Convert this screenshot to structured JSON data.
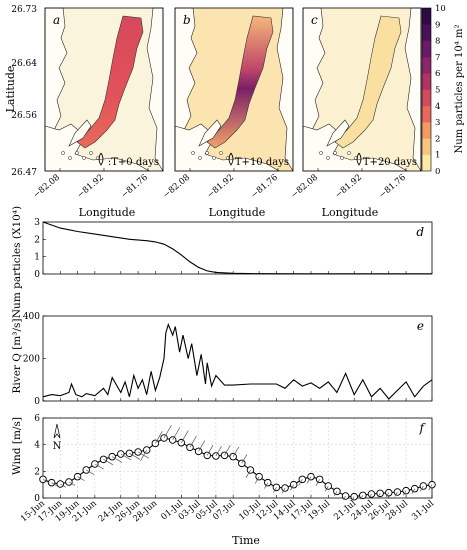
{
  "maps": {
    "ylabel": "Latitude",
    "xlabel": "Longitude",
    "yticks": [
      "26.73",
      "26.64",
      "26.56",
      "26.47"
    ],
    "xticks": [
      "−82.08",
      "−81.92",
      "−81.76"
    ],
    "panels": [
      {
        "letter": "a",
        "label": ":T+0 days"
      },
      {
        "letter": "b",
        "label": "T+10 days"
      },
      {
        "letter": "c",
        "label": "T+20 days"
      }
    ],
    "colorbar": {
      "label": "Num particles per 10⁴ m²",
      "ticks": [
        "10",
        "9",
        "8",
        "7",
        "6",
        "5",
        "4",
        "3",
        "2",
        "1",
        "0"
      ],
      "colors": [
        "#fbe9a6",
        "#f7c77f",
        "#f29a63",
        "#e8685a",
        "#d24a5e",
        "#b03565",
        "#8d2569",
        "#6c1a66",
        "#4a105a",
        "#2d0a44"
      ]
    }
  },
  "chart_data": [
    {
      "type": "line",
      "panel": "d",
      "ylabel": "Num particles (X10⁴)",
      "ylim": [
        0,
        3
      ],
      "yticks": [
        "3",
        "2",
        "1",
        "0"
      ],
      "x": [
        0,
        2,
        4,
        6,
        8,
        10,
        12,
        13,
        14,
        15,
        16,
        17,
        18,
        19,
        20,
        22,
        25,
        30,
        45
      ],
      "y": [
        3.0,
        2.65,
        2.45,
        2.3,
        2.15,
        2.0,
        1.92,
        1.85,
        1.72,
        1.45,
        1.1,
        0.7,
        0.38,
        0.18,
        0.09,
        0.04,
        0.02,
        0.01,
        0.01
      ]
    },
    {
      "type": "line",
      "panel": "e",
      "ylabel": "River Q [m³/s]",
      "ylim": [
        0,
        400
      ],
      "yticks": [
        "400",
        "200",
        "0"
      ],
      "x": [
        0,
        1,
        2,
        3,
        3.3,
        3.8,
        4.5,
        5,
        6,
        7,
        7.5,
        8,
        9,
        9.5,
        10,
        10.5,
        11,
        11.5,
        12,
        12.5,
        13,
        13.5,
        14,
        14.2,
        14.5,
        15,
        15.3,
        15.8,
        16.2,
        16.8,
        17.2,
        17.8,
        18.3,
        18.8,
        19,
        19.5,
        20,
        21,
        22,
        24,
        27,
        28,
        29,
        30,
        31,
        32,
        33,
        34,
        35,
        36,
        37,
        38,
        39,
        40,
        41,
        42,
        43,
        44,
        45
      ],
      "y": [
        20,
        30,
        25,
        40,
        80,
        30,
        20,
        35,
        25,
        60,
        30,
        110,
        40,
        90,
        20,
        120,
        60,
        100,
        30,
        140,
        50,
        110,
        200,
        320,
        360,
        310,
        350,
        230,
        310,
        200,
        270,
        120,
        220,
        80,
        180,
        70,
        120,
        75,
        75,
        80,
        80,
        60,
        100,
        70,
        85,
        60,
        90,
        40,
        130,
        30,
        100,
        20,
        60,
        10,
        50,
        90,
        20,
        70,
        100
      ]
    },
    {
      "type": "line",
      "panel": "f",
      "ylabel": "Wind [m/s]",
      "xlabel": "Time",
      "ylim": [
        0,
        6
      ],
      "yticks": [
        "6",
        "4",
        "2",
        "0"
      ],
      "x": [
        0,
        1,
        2,
        3,
        4,
        5,
        6,
        7,
        8,
        9,
        10,
        11,
        12,
        13,
        14,
        15,
        16,
        17,
        18,
        19,
        20,
        21,
        22,
        23,
        24,
        25,
        26,
        27,
        28,
        29,
        30,
        31,
        32,
        33,
        34,
        35,
        36,
        37,
        38,
        39,
        40,
        41,
        42,
        43,
        44,
        45
      ],
      "y": [
        1.4,
        1.15,
        1.05,
        1.2,
        1.6,
        2.1,
        2.55,
        2.9,
        3.1,
        3.3,
        3.35,
        3.45,
        3.6,
        4.1,
        4.5,
        4.35,
        4.15,
        3.8,
        3.5,
        3.2,
        3.15,
        3.2,
        3.1,
        2.6,
        2.1,
        1.6,
        1.15,
        0.8,
        0.75,
        1.0,
        1.4,
        1.6,
        1.4,
        0.9,
        0.5,
        0.15,
        0.1,
        0.2,
        0.3,
        0.35,
        0.4,
        0.45,
        0.55,
        0.7,
        0.9,
        1.0
      ],
      "north_label": "N",
      "xtick_positions": [
        0,
        2,
        4,
        6,
        9,
        11,
        13,
        16,
        18,
        20,
        22,
        25,
        27,
        29,
        31,
        33,
        36,
        38,
        40,
        42,
        45
      ],
      "xticks": [
        "15-Jun",
        "17-Jun",
        "19-Jun",
        "21-Jun",
        "24-Jun",
        "26-Jun",
        "28-Jun",
        "01-Jul",
        "03-Jul",
        "05-Jul",
        "07-Jul",
        "10-Jul",
        "12-Jul",
        "14-Jul",
        "17-Jul",
        "19-Jul",
        "21-Jul",
        "24-Jul",
        "26-Jul",
        "28-Jul",
        "31-Jul"
      ]
    }
  ]
}
